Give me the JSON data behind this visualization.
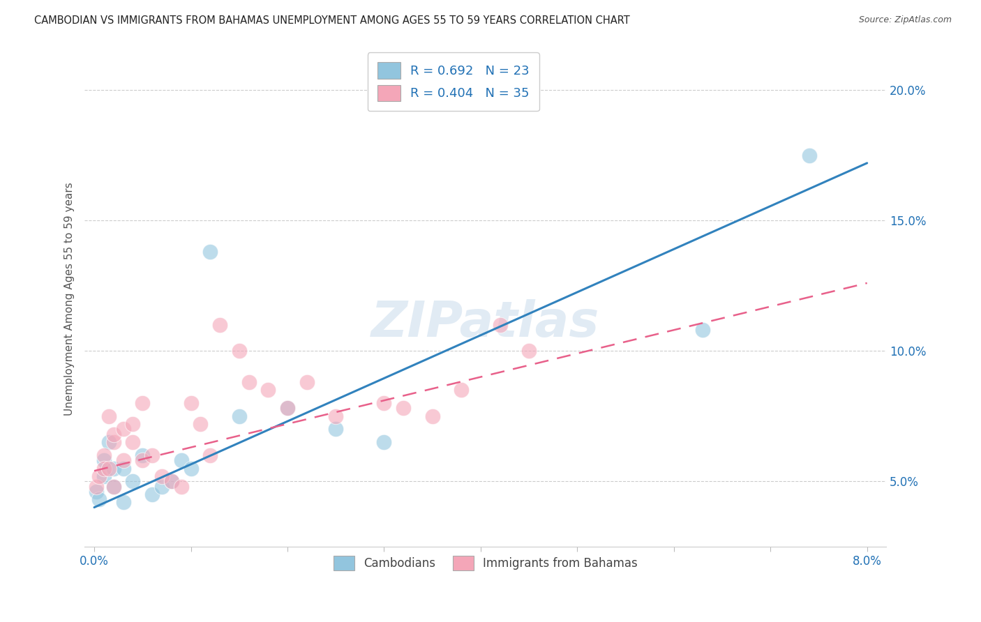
{
  "title": "CAMBODIAN VS IMMIGRANTS FROM BAHAMAS UNEMPLOYMENT AMONG AGES 55 TO 59 YEARS CORRELATION CHART",
  "source": "Source: ZipAtlas.com",
  "ylabel": "Unemployment Among Ages 55 to 59 years",
  "x_tick_positions": [
    0.0,
    0.01,
    0.02,
    0.03,
    0.04,
    0.05,
    0.06,
    0.07,
    0.08
  ],
  "x_tick_labels": [
    "0.0%",
    "",
    "",
    "",
    "",
    "",
    "",
    "",
    "8.0%"
  ],
  "y_ticks_right": [
    0.05,
    0.1,
    0.15,
    0.2
  ],
  "y_tick_labels_right": [
    "5.0%",
    "10.0%",
    "15.0%",
    "20.0%"
  ],
  "xlim": [
    -0.001,
    0.082
  ],
  "ylim": [
    0.025,
    0.215
  ],
  "legend1_label": "R = 0.692   N = 23",
  "legend2_label": "R = 0.404   N = 35",
  "legend_bottom1": "Cambodians",
  "legend_bottom2": "Immigrants from Bahamas",
  "blue_color": "#92c5de",
  "pink_color": "#f4a6b8",
  "blue_line_color": "#3182bd",
  "pink_line_color": "#e8608a",
  "watermark": "ZIPatlas",
  "cambodian_x": [
    0.0002,
    0.0005,
    0.001,
    0.001,
    0.0015,
    0.002,
    0.002,
    0.003,
    0.003,
    0.004,
    0.005,
    0.006,
    0.007,
    0.008,
    0.009,
    0.01,
    0.012,
    0.015,
    0.02,
    0.025,
    0.03,
    0.063,
    0.074
  ],
  "cambodian_y": [
    0.046,
    0.043,
    0.058,
    0.052,
    0.065,
    0.048,
    0.055,
    0.042,
    0.055,
    0.05,
    0.06,
    0.045,
    0.048,
    0.05,
    0.058,
    0.055,
    0.138,
    0.075,
    0.078,
    0.07,
    0.065,
    0.108,
    0.175
  ],
  "bahamas_x": [
    0.0002,
    0.0005,
    0.001,
    0.001,
    0.0015,
    0.0015,
    0.002,
    0.002,
    0.002,
    0.003,
    0.003,
    0.004,
    0.004,
    0.005,
    0.005,
    0.006,
    0.007,
    0.008,
    0.009,
    0.01,
    0.011,
    0.012,
    0.013,
    0.015,
    0.016,
    0.018,
    0.02,
    0.022,
    0.025,
    0.03,
    0.032,
    0.035,
    0.038,
    0.042,
    0.045
  ],
  "bahamas_y": [
    0.048,
    0.052,
    0.06,
    0.055,
    0.055,
    0.075,
    0.048,
    0.065,
    0.068,
    0.07,
    0.058,
    0.072,
    0.065,
    0.08,
    0.058,
    0.06,
    0.052,
    0.05,
    0.048,
    0.08,
    0.072,
    0.06,
    0.11,
    0.1,
    0.088,
    0.085,
    0.078,
    0.088,
    0.075,
    0.08,
    0.078,
    0.075,
    0.085,
    0.11,
    0.1
  ],
  "blue_line_x": [
    0.0,
    0.08
  ],
  "blue_line_y": [
    0.04,
    0.172
  ],
  "pink_line_x": [
    0.0,
    0.08
  ],
  "pink_line_y": [
    0.054,
    0.126
  ]
}
